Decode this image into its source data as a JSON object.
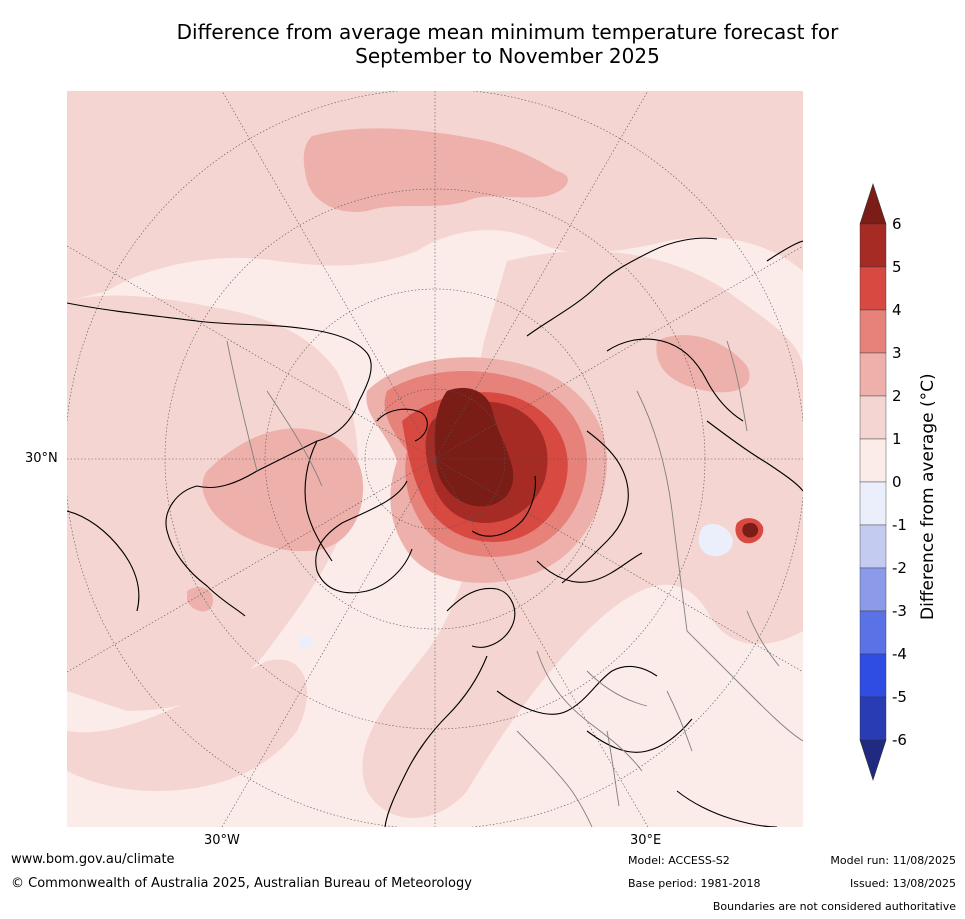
{
  "title": {
    "line1": "Difference from average mean minimum temperature forecast for",
    "line2": "September to November 2025"
  },
  "map_labels": {
    "lat_30n": "30°N",
    "lon_30w": "30°W",
    "lon_30e": "30°E"
  },
  "colorbar": {
    "title": "Difference from average (°C)",
    "ticks": [
      "6",
      "5",
      "4",
      "3",
      "2",
      "1",
      "0",
      "-1",
      "-2",
      "-3",
      "-4",
      "-5",
      "-6"
    ],
    "colors": {
      "over": "#7a1d17",
      "5_6": "#a72b25",
      "4_5": "#d84a41",
      "3_4": "#e6827a",
      "2_3": "#eeb0aa",
      "1_2": "#f5d5d1",
      "0_1": "#fbecea",
      "m1_0": "#eaeffb",
      "m2_m1": "#c3cbf1",
      "m3_m2": "#8b9bea",
      "m4_m3": "#5b72e6",
      "m5_m4": "#2f4de2",
      "m6_m5": "#2a3cb3",
      "under": "#1f2a80"
    }
  },
  "footer": {
    "website": "www.bom.gov.au/climate",
    "copyright": "© Commonwealth of Australia 2025, Australian Bureau of Meteorology",
    "model": "Model: ACCESS-S2",
    "base_period": "Base period: 1981-2018",
    "model_run": "Model run: 11/08/2025",
    "issued": "Issued: 13/08/2025",
    "disclaimer": "Boundaries are not considered authoritative"
  }
}
